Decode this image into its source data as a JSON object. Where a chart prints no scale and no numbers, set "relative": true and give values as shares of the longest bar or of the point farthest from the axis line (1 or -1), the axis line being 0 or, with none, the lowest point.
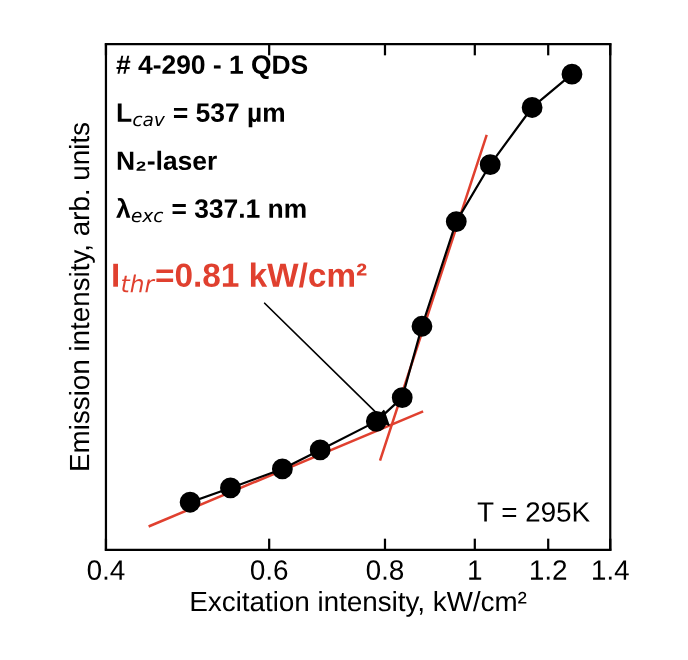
{
  "chart_data": {
    "type": "line",
    "xlabel": "Excitation intensity, kW/cm²",
    "ylabel": "Emission intensity, arb. units",
    "relative": true,
    "log": "x",
    "xlim": [
      0.4,
      1.4
    ],
    "xticks": [
      0.4,
      0.6,
      0.8,
      1,
      1.2,
      1.4
    ],
    "grid": false,
    "legend": false,
    "series": [
      {
        "color": "#000000",
        "marker": "circle",
        "line_style": "solid",
        "x": [
          0.493,
          0.545,
          0.62,
          0.681,
          0.783,
          0.835,
          0.877,
          0.955,
          1.039,
          1.153,
          1.273
        ],
        "values": [
          0.1,
          0.13,
          0.17,
          0.21,
          0.27,
          0.32,
          0.47,
          0.69,
          0.81,
          0.93,
          1
        ]
      },
      {
        "color": "#e0402f",
        "marker": "none",
        "line_style": "solid",
        "x": [
          0.446,
          0.877
        ],
        "values": [
          0.05,
          0.29
        ]
      },
      {
        "color": "#e0402f",
        "marker": "none",
        "line_style": "solid",
        "x": [
          0.791,
          1.029
        ],
        "values": [
          0.19,
          0.87
        ]
      }
    ],
    "annotations": [
      "# 4-290 - 1 QDS",
      "L$_{cav}$ = 537 µm",
      "N₂-laser",
      "λ$_{exc}$ = 337.1 nm",
      {
        "text": "I$_{thr}$=0.81 kW/cm²",
        "x": 0.81,
        "y": 0.26
      },
      "T = 295K"
    ]
  }
}
